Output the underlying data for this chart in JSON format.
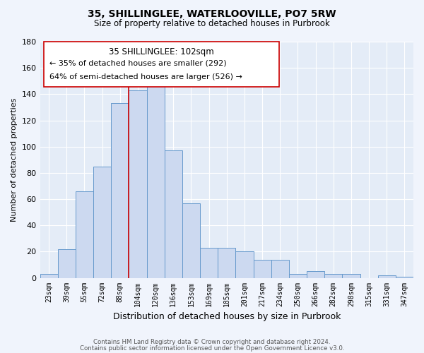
{
  "title": "35, SHILLINGLEE, WATERLOOVILLE, PO7 5RW",
  "subtitle": "Size of property relative to detached houses in Purbrook",
  "xlabel": "Distribution of detached houses by size in Purbrook",
  "ylabel": "Number of detached properties",
  "bin_labels": [
    "23sqm",
    "39sqm",
    "55sqm",
    "72sqm",
    "88sqm",
    "104sqm",
    "120sqm",
    "136sqm",
    "153sqm",
    "169sqm",
    "185sqm",
    "201sqm",
    "217sqm",
    "234sqm",
    "250sqm",
    "266sqm",
    "282sqm",
    "298sqm",
    "315sqm",
    "331sqm",
    "347sqm"
  ],
  "bar_heights": [
    3,
    22,
    66,
    85,
    133,
    143,
    150,
    97,
    57,
    23,
    23,
    20,
    14,
    14,
    3,
    5,
    3,
    3,
    0,
    2,
    1
  ],
  "bar_color": "#ccd9f0",
  "bar_edge_color": "#6699cc",
  "ylim": [
    0,
    180
  ],
  "yticks": [
    0,
    20,
    40,
    60,
    80,
    100,
    120,
    140,
    160,
    180
  ],
  "vline_x": 4.5,
  "vline_color": "#cc0000",
  "annotation_title": "35 SHILLINGLEE: 102sqm",
  "annotation_line1": "← 35% of detached houses are smaller (292)",
  "annotation_line2": "64% of semi-detached houses are larger (526) →",
  "footer1": "Contains HM Land Registry data © Crown copyright and database right 2024.",
  "footer2": "Contains public sector information licensed under the Open Government Licence v3.0.",
  "background_color": "#f0f4fc",
  "plot_bg_color": "#e4ecf7"
}
